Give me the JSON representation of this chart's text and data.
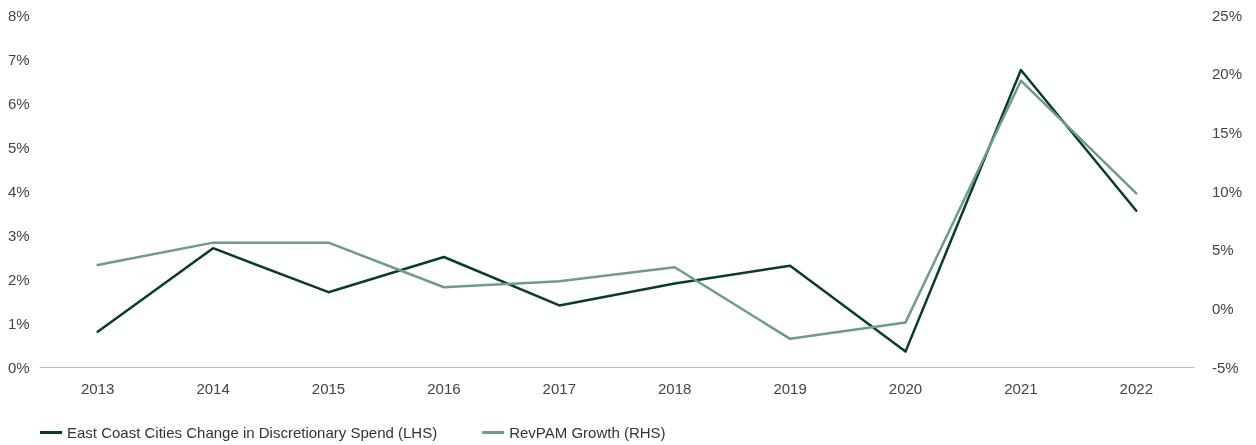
{
  "chart_data": {
    "type": "line",
    "categories": [
      "2013",
      "2014",
      "2015",
      "2016",
      "2017",
      "2018",
      "2019",
      "2020",
      "2021",
      "2022"
    ],
    "series": [
      {
        "name": "East Coast Cities Change in Discretionary Spend (LHS)",
        "color": "#0b3b2e",
        "values": [
          0.8,
          2.7,
          1.7,
          2.5,
          1.4,
          1.9,
          2.3,
          0.35,
          6.75,
          3.55
        ]
      },
      {
        "name": "RevPAM Growth (RHS)",
        "color": "#6e9a8f",
        "axis": "y2",
        "values": [
          3.7,
          5.6,
          5.6,
          1.8,
          2.3,
          3.5,
          -2.6,
          -1.2,
          19.4,
          9.8
        ]
      }
    ],
    "ylim": [
      0,
      8
    ],
    "yticks": [
      {
        "value": 0,
        "label": "0%"
      },
      {
        "value": 1,
        "label": "1%"
      },
      {
        "value": 2,
        "label": "2%"
      },
      {
        "value": 3,
        "label": "3%"
      },
      {
        "value": 4,
        "label": "4%"
      },
      {
        "value": 5,
        "label": "5%"
      },
      {
        "value": 6,
        "label": "6%"
      },
      {
        "value": 7,
        "label": "7%"
      },
      {
        "value": 8,
        "label": "8%"
      }
    ],
    "y2lim": [
      -5,
      25
    ],
    "y2ticks": [
      {
        "value": -5,
        "label": "-5%"
      },
      {
        "value": 0,
        "label": "0%"
      },
      {
        "value": 5,
        "label": "5%"
      },
      {
        "value": 10,
        "label": "10%"
      },
      {
        "value": 15,
        "label": "15%"
      },
      {
        "value": 20,
        "label": "20%"
      },
      {
        "value": 25,
        "label": "25%"
      }
    ],
    "grid": false,
    "legend": "bottom left",
    "marker": "none",
    "line_style": "solid"
  }
}
